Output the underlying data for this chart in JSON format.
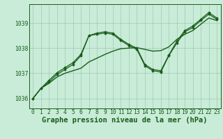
{
  "background_color": "#c8ecd8",
  "grid_color": "#a0c8b0",
  "line_color": "#1a5c1a",
  "marker_color": "#1a5c1a",
  "xlabel": "Graphe pression niveau de la mer (hPa)",
  "xlabel_fontsize": 7.5,
  "tick_fontsize": 5.8,
  "ytick_labels": [
    1036,
    1037,
    1038,
    1039
  ],
  "ylim": [
    1035.6,
    1039.75
  ],
  "xlim": [
    -0.5,
    23.5
  ],
  "xtick_labels": [
    0,
    1,
    2,
    3,
    4,
    5,
    6,
    7,
    8,
    9,
    10,
    11,
    12,
    13,
    14,
    15,
    16,
    17,
    18,
    19,
    20,
    21,
    22,
    23
  ],
  "series": [
    {
      "data": [
        1036.0,
        1036.4,
        1036.6,
        1036.85,
        1037.0,
        1037.1,
        1037.2,
        1037.45,
        1037.6,
        1037.75,
        1037.88,
        1037.98,
        1038.0,
        1038.02,
        1037.95,
        1037.88,
        1037.9,
        1038.05,
        1038.35,
        1038.55,
        1038.7,
        1038.95,
        1039.2,
        1039.1
      ],
      "markers": false,
      "linewidth": 1.0
    },
    {
      "data": [
        1036.0,
        1036.4,
        1036.65,
        1036.95,
        1037.15,
        1037.35,
        1037.7,
        1038.5,
        1038.55,
        1038.6,
        1038.55,
        1038.3,
        1038.1,
        1037.95,
        1037.3,
        1037.1,
        1037.05,
        1037.7,
        1038.2,
        1038.65,
        1038.82,
        1039.1,
        1039.35,
        1039.15
      ],
      "markers": true,
      "linewidth": 0.9
    },
    {
      "data": [
        1036.0,
        1036.4,
        1036.72,
        1037.02,
        1037.22,
        1037.42,
        1037.75,
        1038.5,
        1038.6,
        1038.65,
        1038.6,
        1038.35,
        1038.15,
        1038.0,
        1037.35,
        1037.15,
        1037.1,
        1037.72,
        1038.28,
        1038.7,
        1038.88,
        1039.15,
        1039.42,
        1039.2
      ],
      "markers": true,
      "linewidth": 0.9
    }
  ]
}
